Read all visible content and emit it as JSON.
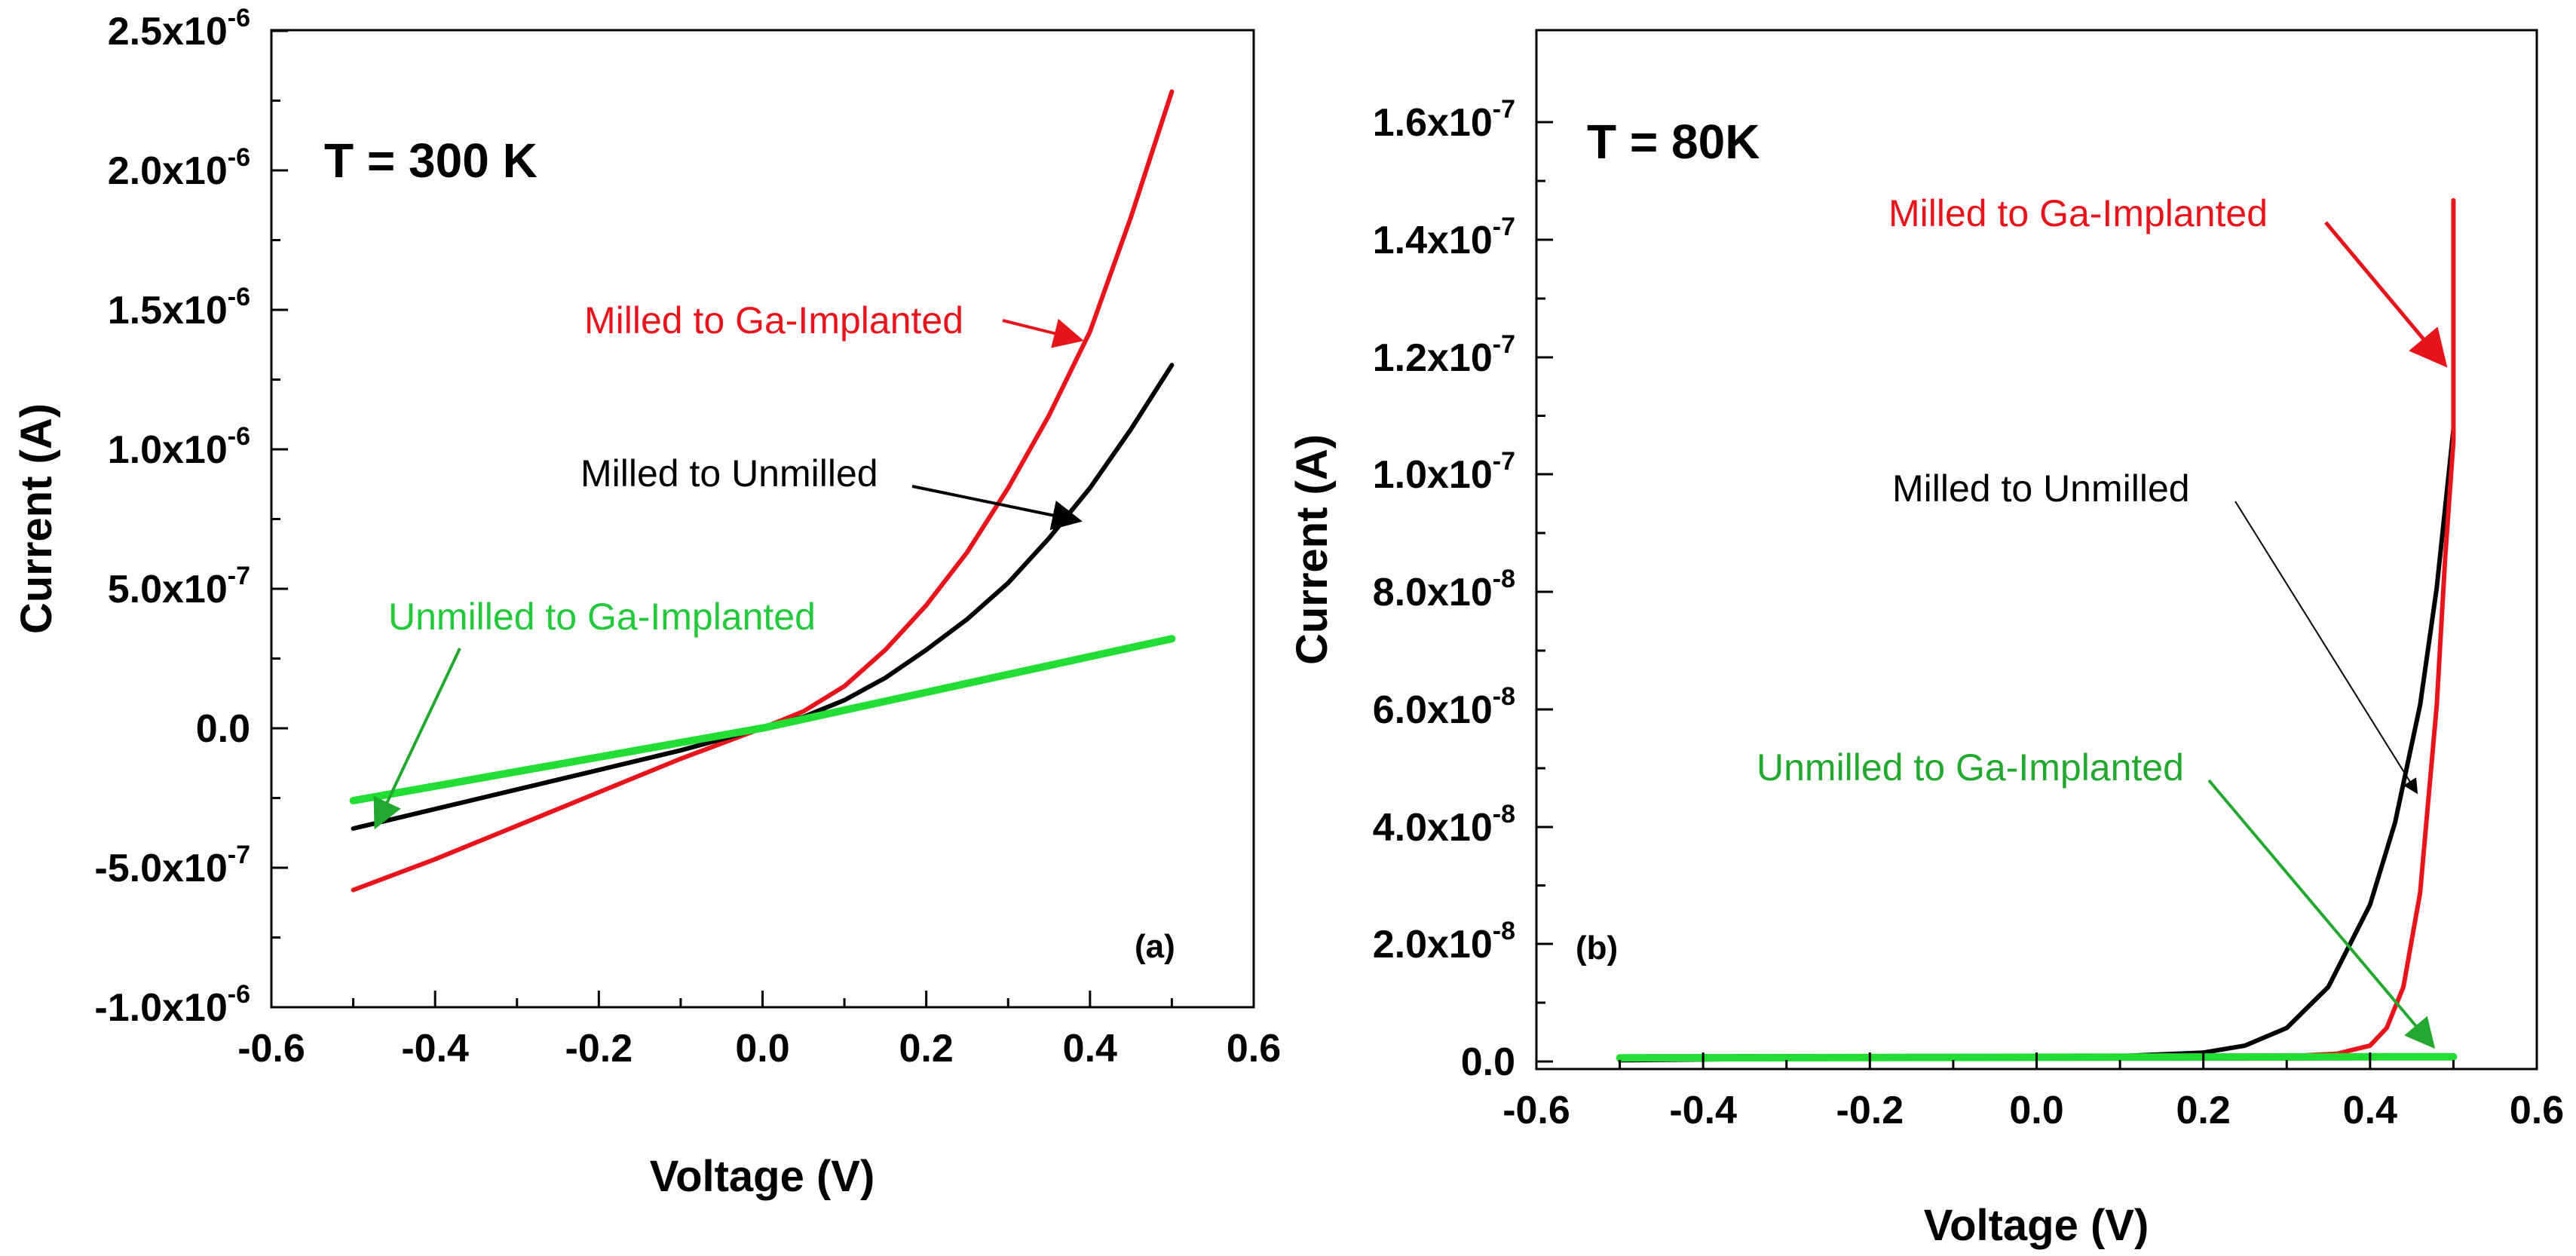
{
  "chart_data": [
    {
      "type": "line",
      "title": "T = 300 K",
      "panel_label": "(a)",
      "xlabel": "Voltage (V)",
      "ylabel": "Current (A)",
      "xlim": [
        -0.6,
        0.6
      ],
      "ylim": [
        -1e-06,
        2.5e-06
      ],
      "x_ticks": [
        "-0.6",
        "-0.4",
        "-0.2",
        "0.0",
        "0.2",
        "0.4",
        "0.6"
      ],
      "y_ticks": [
        {
          "base": "-1.0x10",
          "exp": "-6"
        },
        {
          "base": "-5.0x10",
          "exp": "-7"
        },
        {
          "base": "0.0",
          "exp": ""
        },
        {
          "base": "5.0x10",
          "exp": "-7"
        },
        {
          "base": "1.0x10",
          "exp": "-6"
        },
        {
          "base": "1.5x10",
          "exp": "-6"
        },
        {
          "base": "2.0x10",
          "exp": "-6"
        },
        {
          "base": "2.5x10",
          "exp": "-6"
        }
      ],
      "series": [
        {
          "name": "Milled to Ga-Implanted",
          "color": "#e8141c",
          "x": [
            -0.5,
            -0.4,
            -0.3,
            -0.2,
            -0.1,
            0.0,
            0.05,
            0.1,
            0.15,
            0.2,
            0.25,
            0.3,
            0.35,
            0.4,
            0.45,
            0.5
          ],
          "y": [
            -5.8e-07,
            -4.7e-07,
            -3.5e-07,
            -2.3e-07,
            -1.1e-07,
            0.0,
            6e-08,
            1.5e-07,
            2.8e-07,
            4.4e-07,
            6.3e-07,
            8.6e-07,
            1.12e-06,
            1.42e-06,
            1.83e-06,
            2.28e-06
          ]
        },
        {
          "name": "Milled to Unmilled",
          "color": "#000000",
          "x": [
            -0.5,
            -0.4,
            -0.3,
            -0.2,
            -0.1,
            0.0,
            0.05,
            0.1,
            0.15,
            0.2,
            0.25,
            0.3,
            0.35,
            0.4,
            0.45,
            0.5
          ],
          "y": [
            -3.6e-07,
            -2.9e-07,
            -2.2e-07,
            -1.5e-07,
            -8e-08,
            0.0,
            4e-08,
            1e-07,
            1.8e-07,
            2.8e-07,
            3.9e-07,
            5.2e-07,
            6.8e-07,
            8.6e-07,
            1.07e-06,
            1.3e-06
          ]
        },
        {
          "name": "Unmilled to Ga-Implanted",
          "color": "#22dd33",
          "x": [
            -0.5,
            0.0,
            0.5
          ],
          "y": [
            -2.6e-07,
            0.0,
            3.2e-07
          ]
        }
      ],
      "annotations": [
        {
          "text": "Milled to Ga-Implanted",
          "color": "#e8141c"
        },
        {
          "text": "Milled to Unmilled",
          "color": "#000000"
        },
        {
          "text": "Unmilled to Ga-Implanted",
          "color": "#22c93a"
        }
      ]
    },
    {
      "type": "line",
      "title": "T = 80K",
      "panel_label": "(b)",
      "xlabel": "Voltage (V)",
      "ylabel": "Current (A)",
      "xlim": [
        -0.6,
        0.6
      ],
      "ylim": [
        -2e-09,
        1.75e-07
      ],
      "x_ticks": [
        "-0.6",
        "-0.4",
        "-0.2",
        "0.0",
        "0.2",
        "0.4",
        "0.6"
      ],
      "y_ticks": [
        {
          "base": "0.0",
          "exp": ""
        },
        {
          "base": "2.0x10",
          "exp": "-8"
        },
        {
          "base": "4.0x10",
          "exp": "-8"
        },
        {
          "base": "6.0x10",
          "exp": "-8"
        },
        {
          "base": "8.0x10",
          "exp": "-8"
        },
        {
          "base": "1.0x10",
          "exp": "-7"
        },
        {
          "base": "1.2x10",
          "exp": "-7"
        },
        {
          "base": "1.4x10",
          "exp": "-7"
        },
        {
          "base": "1.6x10",
          "exp": "-7"
        }
      ],
      "series": [
        {
          "name": "Milled to Unmilled",
          "color": "#000000",
          "x": [
            -0.5,
            -0.2,
            0.0,
            0.1,
            0.2,
            0.25,
            0.3,
            0.35,
            0.4,
            0.43,
            0.46,
            0.48,
            0.5
          ],
          "y": [
            -5e-10,
            -1e-10,
            0.0,
            2e-10,
            8e-10,
            2e-09,
            5e-09,
            1.2e-08,
            2.6e-08,
            4e-08,
            6e-08,
            8e-08,
            1.07e-07
          ]
        },
        {
          "name": "Milled to Ga-Implanted",
          "color": "#e8141c",
          "x": [
            -0.5,
            0.0,
            0.3,
            0.36,
            0.4,
            0.42,
            0.44,
            0.46,
            0.48,
            0.49,
            0.5,
            0.5
          ],
          "y": [
            0.0,
            0.0,
            2e-10,
            6e-10,
            2e-09,
            5e-09,
            1.2e-08,
            2.8e-08,
            6e-08,
            8.5e-08,
            1.05e-07,
            1.46e-07
          ]
        },
        {
          "name": "Unmilled to Ga-Implanted",
          "color": "#22dd33",
          "x": [
            -0.5,
            0.0,
            0.5
          ],
          "y": [
            -1e-10,
            0.0,
            1e-10
          ]
        }
      ],
      "annotations": [
        {
          "text": "Milled to Ga-Implanted",
          "color": "#e8141c"
        },
        {
          "text": "Milled to Unmilled",
          "color": "#000000"
        },
        {
          "text": "Unmilled to Ga-Implanted",
          "color": "#22a82e"
        }
      ]
    }
  ]
}
